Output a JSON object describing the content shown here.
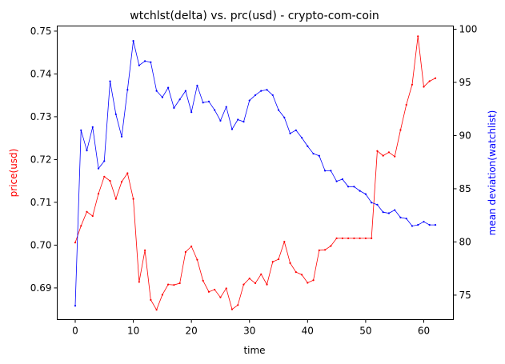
{
  "chart_data": {
    "type": "line",
    "title": "wtchlst(delta) vs. prc(usd) - crypto-com-coin",
    "xlabel": "time",
    "ylabel_left": "price(usd)",
    "ylabel_right": "mean deviation(watchlist)",
    "xlim": [
      -3.1,
      65.1
    ],
    "ylim_left": [
      0.6826,
      0.7512
    ],
    "ylim_right": [
      72.7,
      100.3
    ],
    "x_ticks": [
      0,
      10,
      20,
      30,
      40,
      50,
      60
    ],
    "y_ticks_left": [
      0.69,
      0.7,
      0.71,
      0.72,
      0.73,
      0.74,
      0.75
    ],
    "y_ticks_right": [
      75,
      80,
      85,
      90,
      95,
      100
    ],
    "x_tick_labels": [
      "0",
      "10",
      "20",
      "30",
      "40",
      "50",
      "60"
    ],
    "y_tick_labels_left": [
      "0.69",
      "0.70",
      "0.71",
      "0.72",
      "0.73",
      "0.74",
      "0.75"
    ],
    "y_tick_labels_right": [
      "75",
      "80",
      "85",
      "90",
      "95",
      "100"
    ],
    "grid": false,
    "colors": {
      "price": "#ff0000",
      "watchlist": "#0000ff"
    },
    "series": [
      {
        "axis": "left",
        "color": "#ff0000",
        "x": [
          0,
          1,
          2,
          3,
          4,
          5,
          6,
          7,
          8,
          9,
          10,
          11,
          12,
          13,
          14,
          15,
          16,
          17,
          18,
          19,
          20,
          21,
          22,
          23,
          24,
          25,
          26,
          27,
          28,
          29,
          30,
          31,
          32,
          33,
          34,
          35,
          36,
          37,
          38,
          39,
          40,
          41,
          42,
          43,
          44,
          45,
          46,
          47,
          48,
          49,
          50,
          51,
          52,
          53,
          54,
          55,
          56,
          57,
          58,
          59,
          60,
          61,
          62
        ],
        "values": [
          0.7006,
          0.7045,
          0.7078,
          0.7068,
          0.712,
          0.716,
          0.715,
          0.7108,
          0.7148,
          0.7168,
          0.7108,
          0.6914,
          0.6988,
          0.6872,
          0.6849,
          0.6884,
          0.6908,
          0.6907,
          0.6911,
          0.6984,
          0.6997,
          0.6966,
          0.6917,
          0.6891,
          0.6896,
          0.6878,
          0.6899,
          0.685,
          0.686,
          0.6908,
          0.6922,
          0.6911,
          0.6932,
          0.6908,
          0.6961,
          0.6967,
          0.7008,
          0.6958,
          0.6937,
          0.6931,
          0.6912,
          0.6918,
          0.6988,
          0.6989,
          0.6998,
          0.7016,
          0.7016,
          0.7016,
          0.7016,
          0.7016,
          0.7016,
          0.7016,
          0.722,
          0.7209,
          0.7217,
          0.7207,
          0.7269,
          0.7328,
          0.7375,
          0.7488,
          0.737,
          0.7383,
          0.739
        ]
      },
      {
        "axis": "right",
        "color": "#0000ff",
        "x": [
          0,
          1,
          2,
          3,
          4,
          5,
          6,
          7,
          8,
          9,
          10,
          11,
          12,
          13,
          14,
          15,
          16,
          17,
          18,
          19,
          20,
          21,
          22,
          23,
          24,
          25,
          26,
          27,
          28,
          29,
          30,
          31,
          32,
          33,
          34,
          35,
          36,
          37,
          38,
          39,
          40,
          41,
          42,
          43,
          44,
          45,
          46,
          47,
          48,
          49,
          50,
          51,
          52,
          53,
          54,
          55,
          56,
          57,
          58,
          59,
          60,
          61,
          62
        ],
        "values": [
          74.0,
          90.5,
          88.6,
          90.8,
          86.9,
          87.6,
          95.1,
          92.0,
          89.9,
          94.3,
          98.9,
          96.6,
          97.0,
          96.9,
          94.2,
          93.6,
          94.5,
          92.6,
          93.4,
          94.2,
          92.2,
          94.7,
          93.1,
          93.2,
          92.4,
          91.4,
          92.7,
          90.6,
          91.5,
          91.3,
          93.3,
          93.8,
          94.2,
          94.3,
          93.8,
          92.4,
          91.7,
          90.2,
          90.5,
          89.8,
          89.0,
          88.3,
          88.1,
          86.7,
          86.7,
          85.7,
          85.9,
          85.2,
          85.2,
          84.8,
          84.5,
          83.7,
          83.5,
          82.8,
          82.7,
          83.0,
          82.3,
          82.2,
          81.5,
          81.6,
          81.9,
          81.6,
          81.6
        ]
      }
    ]
  }
}
